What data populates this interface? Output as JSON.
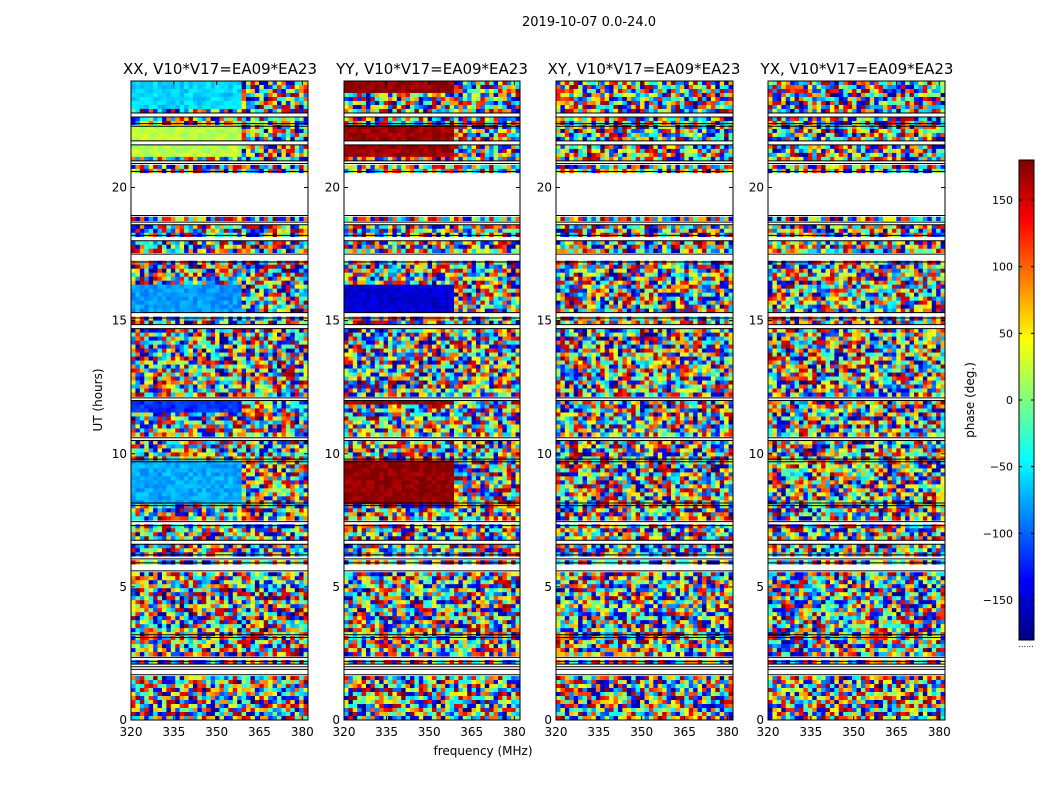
{
  "figure": {
    "title": "2019-10-07 0.0-24.0"
  },
  "chart_data": {
    "type": "heatmap",
    "description_note": "waterfall phase plots, 4 correlation panels",
    "xlabel": "frequency (MHz)",
    "ylabel": "UT (hours)",
    "xlim": [
      320,
      382
    ],
    "ylim": [
      0,
      24
    ],
    "xticks": [
      320,
      335,
      350,
      365,
      380
    ],
    "yticks": [
      0,
      5,
      10,
      15,
      20
    ],
    "panels": [
      {
        "title": "XX, V10*V17=EA09*EA23",
        "pol": "XX"
      },
      {
        "title": "YY, V10*V17=EA09*EA23",
        "pol": "YY"
      },
      {
        "title": "XY, V10*V17=EA09*EA23",
        "pol": "XY"
      },
      {
        "title": "YX, V10*V17=EA09*EA23",
        "pol": "YX"
      }
    ],
    "blank_intervals_hours": [
      [
        1.7,
        1.9
      ],
      [
        2.0,
        2.1
      ],
      [
        2.2,
        2.35
      ],
      [
        3.1,
        3.2
      ],
      [
        5.6,
        5.9
      ],
      [
        6.05,
        6.2
      ],
      [
        6.6,
        6.75
      ],
      [
        7.3,
        7.45
      ],
      [
        8.05,
        8.15
      ],
      [
        9.7,
        9.8
      ],
      [
        10.5,
        10.6
      ],
      [
        12.0,
        12.1
      ],
      [
        14.7,
        14.85
      ],
      [
        15.1,
        15.3
      ],
      [
        17.2,
        17.5
      ],
      [
        18.0,
        18.2
      ],
      [
        18.6,
        18.7
      ],
      [
        18.95,
        20.6
      ],
      [
        20.9,
        21.0
      ],
      [
        21.6,
        21.75
      ],
      [
        22.3,
        22.4
      ],
      [
        22.65,
        22.8
      ]
    ],
    "colorbar": {
      "label": "phase (deg.)",
      "range": [
        -180,
        180
      ],
      "ticks": [
        -150,
        -100,
        -50,
        0,
        50,
        100,
        150
      ],
      "colormap": "jet",
      "tick_dots": "......"
    }
  }
}
